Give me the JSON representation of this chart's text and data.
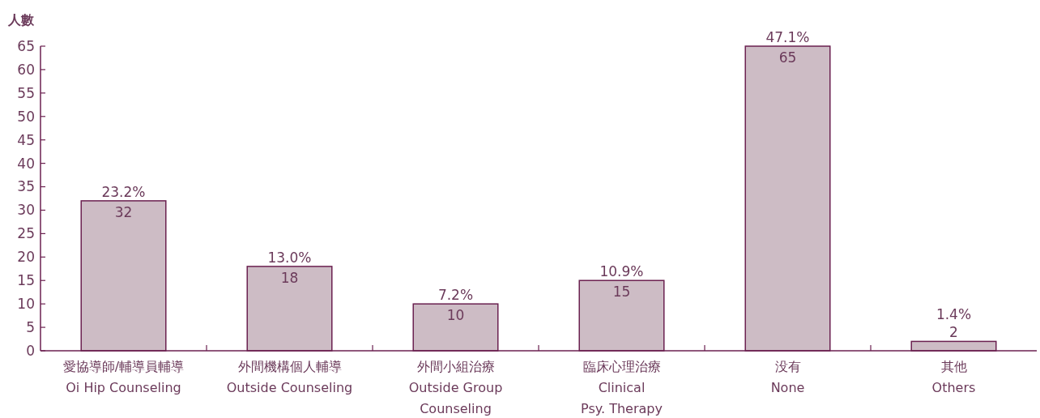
{
  "chart_data": {
    "type": "bar",
    "ylabel": "人數",
    "categories": [
      "愛協導師/輔導員輔導\nOi Hip Counseling",
      "外間機構個人輔導\nOutside Counseling",
      "外間小組治療\nOutside Group\nCounseling",
      "臨床心理治療\nClinical\nPsy. Therapy",
      "没有\nNone",
      "其他\nOthers"
    ],
    "values": [
      32,
      18,
      10,
      15,
      65,
      2
    ],
    "color": "#cdbcc5",
    "ylim": [
      0,
      65
    ],
    "yticks": [
      0,
      5,
      10,
      15,
      20,
      25,
      30,
      35,
      40,
      45,
      50,
      55,
      60,
      65
    ],
    "data_labels": true,
    "annotations": [
      {
        "text": "23.2%",
        "x": "愛協導師/輔導員輔導\nOi Hip Counseling",
        "y": 32
      },
      {
        "text": "13.0%",
        "x": "外間機構個人輔導\nOutside Counseling",
        "y": 18
      },
      {
        "text": "7.2%",
        "x": "外間小組治療\nOutside Group\nCounseling",
        "y": 10
      },
      {
        "text": "10.9%",
        "x": "臨床心理治療\nClinical\nPsy. Therapy",
        "y": 15
      },
      {
        "text": "47.1%",
        "x": "没有\nNone",
        "y": 65
      },
      {
        "text": "1.4%",
        "x": "其他\nOthers",
        "y": 2
      }
    ],
    "grid": false
  }
}
